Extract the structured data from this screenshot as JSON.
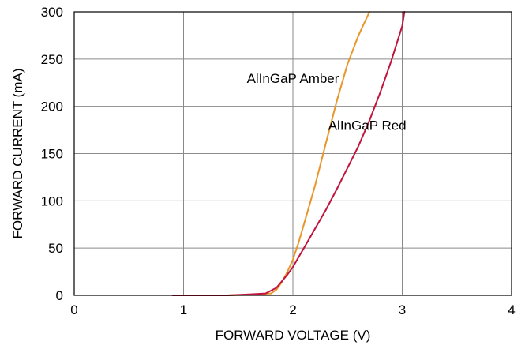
{
  "chart_data": {
    "type": "line",
    "title": "",
    "xlabel": "FORWARD VOLTAGE (V)",
    "ylabel": "FORWARD CURRENT (mA)",
    "xlim": [
      0,
      4
    ],
    "ylim": [
      0,
      300
    ],
    "xticks": [
      "0",
      "1",
      "2",
      "3",
      "4"
    ],
    "yticks": [
      "0",
      "50",
      "100",
      "150",
      "200",
      "250",
      "300"
    ],
    "grid": true,
    "legend": "none",
    "series": [
      {
        "name": "AlInGaP Amber",
        "color": "#E8962A",
        "x": [
          0.9,
          1.4,
          1.6,
          1.8,
          1.85,
          1.9,
          1.95,
          2.0,
          2.05,
          2.1,
          2.2,
          2.3,
          2.4,
          2.5,
          2.6,
          2.7
        ],
        "y": [
          0,
          0,
          0.5,
          2,
          6,
          14,
          25,
          38,
          55,
          75,
          115,
          160,
          205,
          245,
          275,
          300
        ]
      },
      {
        "name": "AlInGaP Red",
        "color": "#C0143C",
        "x": [
          0.9,
          1.4,
          1.6,
          1.75,
          1.85,
          1.9,
          1.95,
          2.0,
          2.1,
          2.2,
          2.3,
          2.4,
          2.5,
          2.6,
          2.7,
          2.8,
          2.9,
          3.0,
          3.02
        ],
        "y": [
          0,
          0,
          1,
          2,
          8,
          15,
          22,
          30,
          50,
          70,
          90,
          112,
          135,
          158,
          185,
          215,
          248,
          285,
          300
        ]
      }
    ],
    "annotations": [
      {
        "text": "AlInGaP Amber",
        "x": 2.0,
        "y": 225
      },
      {
        "text": "AlInGaP Red",
        "x": 2.68,
        "y": 175
      }
    ]
  }
}
